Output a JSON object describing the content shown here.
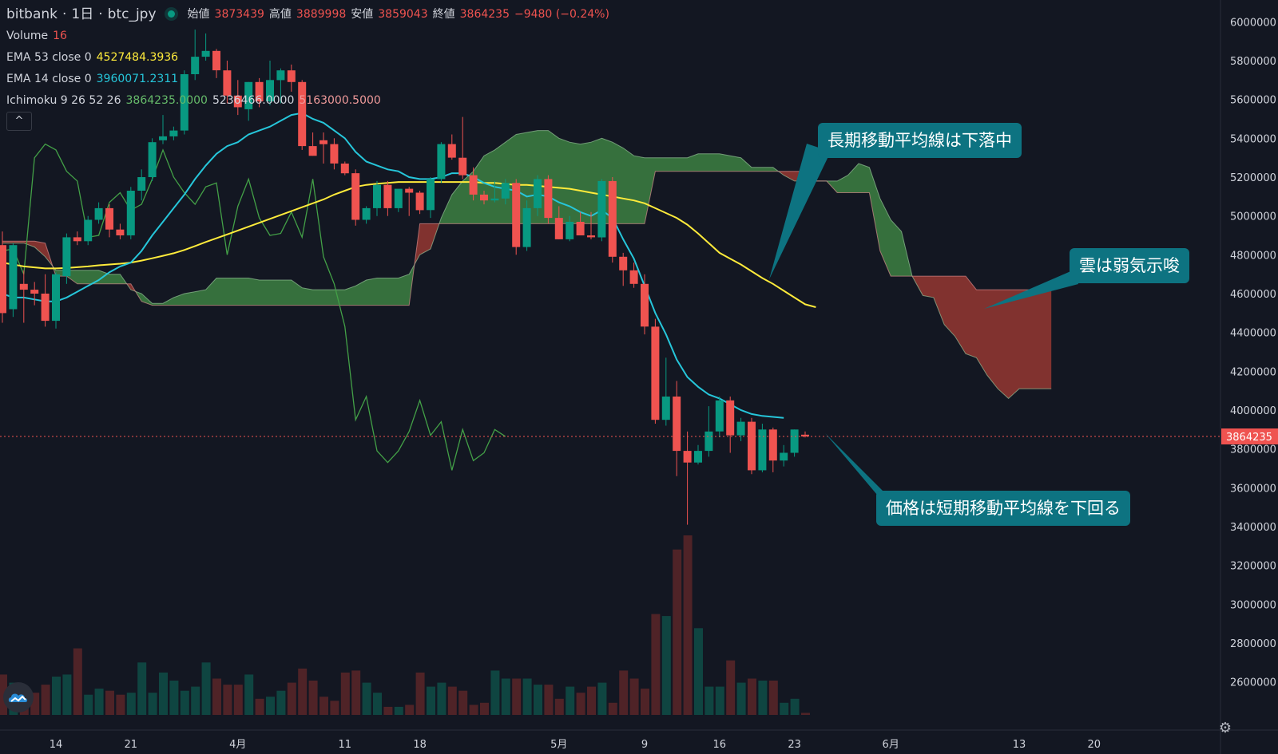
{
  "header": {
    "exchange": "bitbank",
    "interval": "1日",
    "pair": "btc_jpy",
    "open_label": "始値",
    "open_value": "3873439",
    "high_label": "高値",
    "high_value": "3889998",
    "low_label": "安値",
    "low_value": "3859043",
    "close_label": "終値",
    "close_value": "3864235",
    "change": "−9480 (−0.24%)"
  },
  "indicators": {
    "volume_label": "Volume",
    "volume_value": "16",
    "ema53_label": "EMA 53 close 0",
    "ema53_value": "4527484.3936",
    "ema14_label": "EMA 14 close 0",
    "ema14_value": "3960071.2311",
    "ichimoku_label": "Ichimoku 9 26 52 26",
    "ichimoku_v1": "3864235.0000",
    "ichimoku_v2": "5236466.0000",
    "ichimoku_v3": "5163000.5000",
    "collapse_glyph": "^"
  },
  "annotations": [
    "長期移動平均線は下落中",
    "雲は弱気示唆",
    "価格は短期移動平均線を下回る"
  ],
  "icons": {
    "logo": "tradingview-logo-icon",
    "settings": "gear-icon"
  },
  "colors": {
    "up": "#089981",
    "down": "#ef5350",
    "ema53": "#ffeb3b",
    "ema14": "#26c6da",
    "chikou": "#43a047",
    "cloud_bull": "#3b7a40",
    "cloud_bear": "#8e3531",
    "callout": "#0d7381",
    "background": "#131722"
  },
  "chart_data": {
    "type": "candlestick",
    "y_axis": {
      "min": 2500000,
      "max": 6050000,
      "ticks": [
        6000000,
        5800000,
        5600000,
        5400000,
        5200000,
        5000000,
        4800000,
        4600000,
        4400000,
        4200000,
        4000000,
        3800000,
        3600000,
        3400000,
        3200000,
        3000000,
        2800000,
        2600000
      ],
      "tick_labels": [
        "6000000",
        "5800000",
        "5600000",
        "5400000",
        "5200000",
        "5000000",
        "4800000",
        "4600000",
        "4400000",
        "4200000",
        "4000000",
        "3800000",
        "3600000",
        "3400000",
        "3200000",
        "3000000",
        "2800000",
        "2600000"
      ]
    },
    "x_axis": {
      "labels": [
        {
          "text": "14",
          "day": 5
        },
        {
          "text": "21",
          "day": 12
        },
        {
          "text": "4月",
          "day": 22
        },
        {
          "text": "11",
          "day": 32
        },
        {
          "text": "18",
          "day": 39
        },
        {
          "text": "5月",
          "day": 52
        },
        {
          "text": "9",
          "day": 60
        },
        {
          "text": "16",
          "day": 67
        },
        {
          "text": "23",
          "day": 74
        },
        {
          "text": "6月",
          "day": 83
        },
        {
          "text": "13",
          "day": 95
        },
        {
          "text": "20",
          "day": 102
        }
      ]
    },
    "last_price": 3864235,
    "last_price_label": "3864235",
    "candles": [
      [
        4850000,
        4920000,
        4450000,
        4500000
      ],
      [
        4520000,
        4860000,
        4480000,
        4850000
      ],
      [
        4650000,
        4720000,
        4450000,
        4620000
      ],
      [
        4620000,
        4660000,
        4540000,
        4600000
      ],
      [
        4600000,
        4700000,
        4430000,
        4460000
      ],
      [
        4460000,
        4710000,
        4420000,
        4700000
      ],
      [
        4690000,
        4910000,
        4650000,
        4890000
      ],
      [
        4890000,
        4920000,
        4850000,
        4870000
      ],
      [
        4870000,
        5000000,
        4850000,
        4980000
      ],
      [
        4980000,
        5070000,
        4960000,
        5040000
      ],
      [
        5040000,
        5060000,
        4890000,
        4930000
      ],
      [
        4930000,
        4960000,
        4880000,
        4900000
      ],
      [
        4900000,
        5150000,
        4880000,
        5130000
      ],
      [
        5130000,
        5240000,
        5080000,
        5200000
      ],
      [
        5200000,
        5400000,
        5180000,
        5380000
      ],
      [
        5390000,
        5520000,
        5370000,
        5410000
      ],
      [
        5410000,
        5460000,
        5390000,
        5440000
      ],
      [
        5440000,
        5750000,
        5420000,
        5730000
      ],
      [
        5730000,
        5960000,
        5700000,
        5820000
      ],
      [
        5820000,
        5940000,
        5800000,
        5850000
      ],
      [
        5850000,
        5860000,
        5710000,
        5750000
      ],
      [
        5750000,
        5800000,
        5580000,
        5620000
      ],
      [
        5620000,
        5700000,
        5520000,
        5560000
      ],
      [
        5550000,
        5690000,
        5490000,
        5690000
      ],
      [
        5690000,
        5710000,
        5560000,
        5590000
      ],
      [
        5590000,
        5800000,
        5570000,
        5700000
      ],
      [
        5700000,
        5760000,
        5580000,
        5750000
      ],
      [
        5750000,
        5780000,
        5640000,
        5690000
      ],
      [
        5690000,
        5700000,
        5340000,
        5360000
      ],
      [
        5360000,
        5430000,
        5310000,
        5310000
      ],
      [
        5390000,
        5430000,
        5270000,
        5370000
      ],
      [
        5370000,
        5400000,
        5240000,
        5270000
      ],
      [
        5270000,
        5280000,
        5210000,
        5220000
      ],
      [
        5220000,
        5240000,
        4950000,
        4980000
      ],
      [
        4980000,
        5050000,
        4960000,
        5040000
      ],
      [
        5040000,
        5180000,
        5000000,
        5160000
      ],
      [
        5160000,
        5180000,
        5000000,
        5040000
      ],
      [
        5040000,
        5120000,
        5020000,
        5140000
      ],
      [
        5140000,
        5150000,
        5000000,
        5120000
      ],
      [
        5120000,
        5130000,
        5010000,
        5030000
      ],
      [
        5030000,
        5200000,
        4990000,
        5190000
      ],
      [
        5190000,
        5380000,
        5170000,
        5370000
      ],
      [
        5370000,
        5420000,
        5290000,
        5300000
      ],
      [
        5300000,
        5510000,
        5190000,
        5210000
      ],
      [
        5210000,
        5250000,
        5080000,
        5110000
      ],
      [
        5110000,
        5130000,
        5060000,
        5080000
      ],
      [
        5080000,
        5180000,
        5070000,
        5090000
      ],
      [
        5090000,
        5190000,
        5060000,
        5170000
      ],
      [
        5170000,
        5190000,
        4800000,
        4840000
      ],
      [
        4840000,
        5080000,
        4820000,
        5040000
      ],
      [
        5040000,
        5210000,
        5000000,
        5190000
      ],
      [
        5190000,
        5210000,
        4960000,
        4990000
      ],
      [
        4990000,
        5050000,
        4880000,
        4880000
      ],
      [
        4880000,
        5000000,
        4870000,
        4970000
      ],
      [
        4970000,
        5020000,
        4930000,
        4900000
      ],
      [
        4900000,
        5020000,
        4880000,
        4890000
      ],
      [
        4890000,
        5190000,
        4870000,
        5180000
      ],
      [
        5180000,
        5200000,
        4760000,
        4790000
      ],
      [
        4790000,
        4810000,
        4640000,
        4720000
      ],
      [
        4720000,
        4760000,
        4630000,
        4650000
      ],
      [
        4650000,
        4700000,
        4390000,
        4430000
      ],
      [
        4430000,
        4470000,
        3930000,
        3950000
      ],
      [
        3950000,
        4270000,
        3920000,
        4070000
      ],
      [
        4070000,
        4150000,
        3660000,
        3790000
      ],
      [
        3790000,
        3890000,
        3410000,
        3730000
      ],
      [
        3730000,
        3820000,
        3720000,
        3790000
      ],
      [
        3790000,
        4020000,
        3760000,
        3890000
      ],
      [
        3890000,
        4070000,
        3860000,
        4050000
      ],
      [
        4050000,
        4070000,
        3780000,
        3870000
      ],
      [
        3870000,
        3960000,
        3840000,
        3940000
      ],
      [
        3940000,
        3960000,
        3670000,
        3690000
      ],
      [
        3690000,
        3930000,
        3680000,
        3900000
      ],
      [
        3900000,
        3910000,
        3680000,
        3740000
      ],
      [
        3740000,
        3820000,
        3710000,
        3780000
      ],
      [
        3780000,
        3900000,
        3760000,
        3900000
      ],
      [
        3873439,
        3889998,
        3859043,
        3864235
      ]
    ],
    "volume": [
      2.0,
      1.6,
      1.3,
      1.1,
      1.5,
      1.9,
      2.0,
      3.3,
      1.0,
      1.3,
      1.2,
      1.0,
      1.1,
      2.6,
      1.1,
      2.1,
      1.7,
      1.2,
      1.4,
      2.6,
      1.8,
      1.5,
      1.5,
      2.0,
      0.8,
      0.9,
      1.2,
      1.6,
      2.3,
      1.7,
      0.9,
      0.7,
      2.1,
      2.2,
      1.6,
      1.1,
      0.4,
      0.4,
      0.5,
      2.1,
      1.4,
      1.6,
      1.4,
      1.2,
      0.5,
      0.6,
      2.2,
      1.8,
      1.8,
      1.8,
      1.5,
      1.5,
      0.8,
      1.4,
      1.1,
      1.4,
      1.6,
      0.6,
      2.2,
      1.8,
      1.3,
      5.0,
      4.9,
      8.2,
      8.9,
      4.3,
      1.4,
      1.4,
      2.7,
      1.6,
      1.8,
      1.7,
      1.7,
      0.6,
      0.8,
      0.1
    ],
    "ema53": [
      4760000,
      4750000,
      4740000,
      4735000,
      4730000,
      4730000,
      4732000,
      4736000,
      4740000,
      4746000,
      4750000,
      4754000,
      4760000,
      4770000,
      4782000,
      4795000,
      4808000,
      4825000,
      4845000,
      4866000,
      4885000,
      4905000,
      4925000,
      4945000,
      4965000,
      4985000,
      5005000,
      5025000,
      5045000,
      5065000,
      5085000,
      5110000,
      5130000,
      5150000,
      5160000,
      5166000,
      5170000,
      5175000,
      5175000,
      5175000,
      5175000,
      5175000,
      5175000,
      5175000,
      5175000,
      5170000,
      5170000,
      5165000,
      5160000,
      5160000,
      5155000,
      5150000,
      5145000,
      5140000,
      5130000,
      5120000,
      5110000,
      5100000,
      5090000,
      5080000,
      5065000,
      5040000,
      5015000,
      4990000,
      4955000,
      4910000,
      4860000,
      4810000,
      4780000,
      4750000,
      4715000,
      4680000,
      4650000,
      4615000,
      4580000,
      4545000,
      4530000
    ],
    "ema14": [
      4600000,
      4580000,
      4580000,
      4570000,
      4560000,
      4560000,
      4580000,
      4610000,
      4640000,
      4670000,
      4710000,
      4740000,
      4760000,
      4820000,
      4900000,
      4970000,
      5040000,
      5110000,
      5190000,
      5260000,
      5320000,
      5360000,
      5380000,
      5420000,
      5440000,
      5460000,
      5490000,
      5520000,
      5530000,
      5500000,
      5480000,
      5440000,
      5400000,
      5330000,
      5280000,
      5260000,
      5240000,
      5230000,
      5200000,
      5190000,
      5190000,
      5200000,
      5220000,
      5220000,
      5200000,
      5170000,
      5150000,
      5140000,
      5130000,
      5100000,
      5110000,
      5100000,
      5070000,
      5050000,
      5020000,
      5000000,
      5030000,
      4990000,
      4880000,
      4780000,
      4640000,
      4500000,
      4390000,
      4260000,
      4170000,
      4120000,
      4080000,
      4060000,
      4030000,
      4000000,
      3980000,
      3970000,
      3965000,
      3960000
    ],
    "chikou": [
      4820000,
      4830000,
      4700000,
      5300000,
      5370000,
      5340000,
      5230000,
      5180000,
      4890000,
      4900000,
      5070000,
      5120000,
      5030000,
      5060000,
      5190000,
      5340000,
      5200000,
      5120000,
      5060000,
      5150000,
      5170000,
      4800000,
      5050000,
      5190000,
      4990000,
      4900000,
      4910000,
      5020000,
      4890000,
      5190000,
      4790000,
      4650000,
      4430000,
      3950000,
      4070000,
      3790000,
      3730000,
      3790000,
      3890000,
      4050000,
      3870000,
      3940000,
      3690000,
      3900000,
      3740000,
      3780000,
      3900000,
      3864000
    ],
    "cloud": {
      "span_a": [
        4860000,
        4860000,
        4860000,
        4840000,
        4790000,
        4720000,
        4720000,
        4720000,
        4720000,
        4720000,
        4700000,
        4700000,
        4620000,
        4600000,
        4550000,
        4550000,
        4580000,
        4600000,
        4610000,
        4620000,
        4680000,
        4680000,
        4680000,
        4680000,
        4670000,
        4670000,
        4670000,
        4670000,
        4630000,
        4620000,
        4620000,
        4620000,
        4620000,
        4640000,
        4670000,
        4680000,
        4680000,
        4680000,
        4700000,
        4800000,
        4830000,
        4990000,
        5110000,
        5180000,
        5230000,
        5310000,
        5340000,
        5380000,
        5420000,
        5430000,
        5440000,
        5440000,
        5400000,
        5380000,
        5370000,
        5380000,
        5400000,
        5380000,
        5350000,
        5310000,
        5300000,
        5300000,
        5300000,
        5300000,
        5300000,
        5320000,
        5320000,
        5320000,
        5310000,
        5300000,
        5250000,
        5250000,
        5250000,
        5210000,
        5180000,
        5180000,
        5180000,
        5180000,
        5180000,
        5210000,
        5270000,
        5250000,
        5090000,
        4980000,
        4920000,
        4690000,
        4590000,
        4580000,
        4440000,
        4380000,
        4290000,
        4270000,
        4180000,
        4110000,
        4060000,
        4110000,
        4110000,
        4110000,
        4110000
      ],
      "span_b": [
        4870000,
        4870000,
        4870000,
        4870000,
        4860000,
        4690000,
        4690000,
        4650000,
        4650000,
        4650000,
        4650000,
        4650000,
        4650000,
        4560000,
        4540000,
        4540000,
        4540000,
        4540000,
        4540000,
        4540000,
        4540000,
        4540000,
        4540000,
        4540000,
        4540000,
        4540000,
        4540000,
        4540000,
        4540000,
        4540000,
        4540000,
        4540000,
        4540000,
        4540000,
        4540000,
        4540000,
        4540000,
        4540000,
        4540000,
        4960000,
        4960000,
        4960000,
        4960000,
        4960000,
        4960000,
        4960000,
        4960000,
        4960000,
        4960000,
        4960000,
        4960000,
        4960000,
        4960000,
        4960000,
        4960000,
        4960000,
        4960000,
        4960000,
        4960000,
        4960000,
        4960000,
        5230000,
        5230000,
        5230000,
        5230000,
        5230000,
        5230000,
        5230000,
        5230000,
        5230000,
        5230000,
        5230000,
        5230000,
        5230000,
        5230000,
        5230000,
        5180000,
        5180000,
        5120000,
        5120000,
        5120000,
        5120000,
        4820000,
        4690000,
        4690000,
        4690000,
        4690000,
        4690000,
        4690000,
        4690000,
        4690000,
        4620000,
        4620000,
        4620000,
        4620000,
        4620000,
        4620000,
        4620000,
        4620000
      ]
    }
  }
}
